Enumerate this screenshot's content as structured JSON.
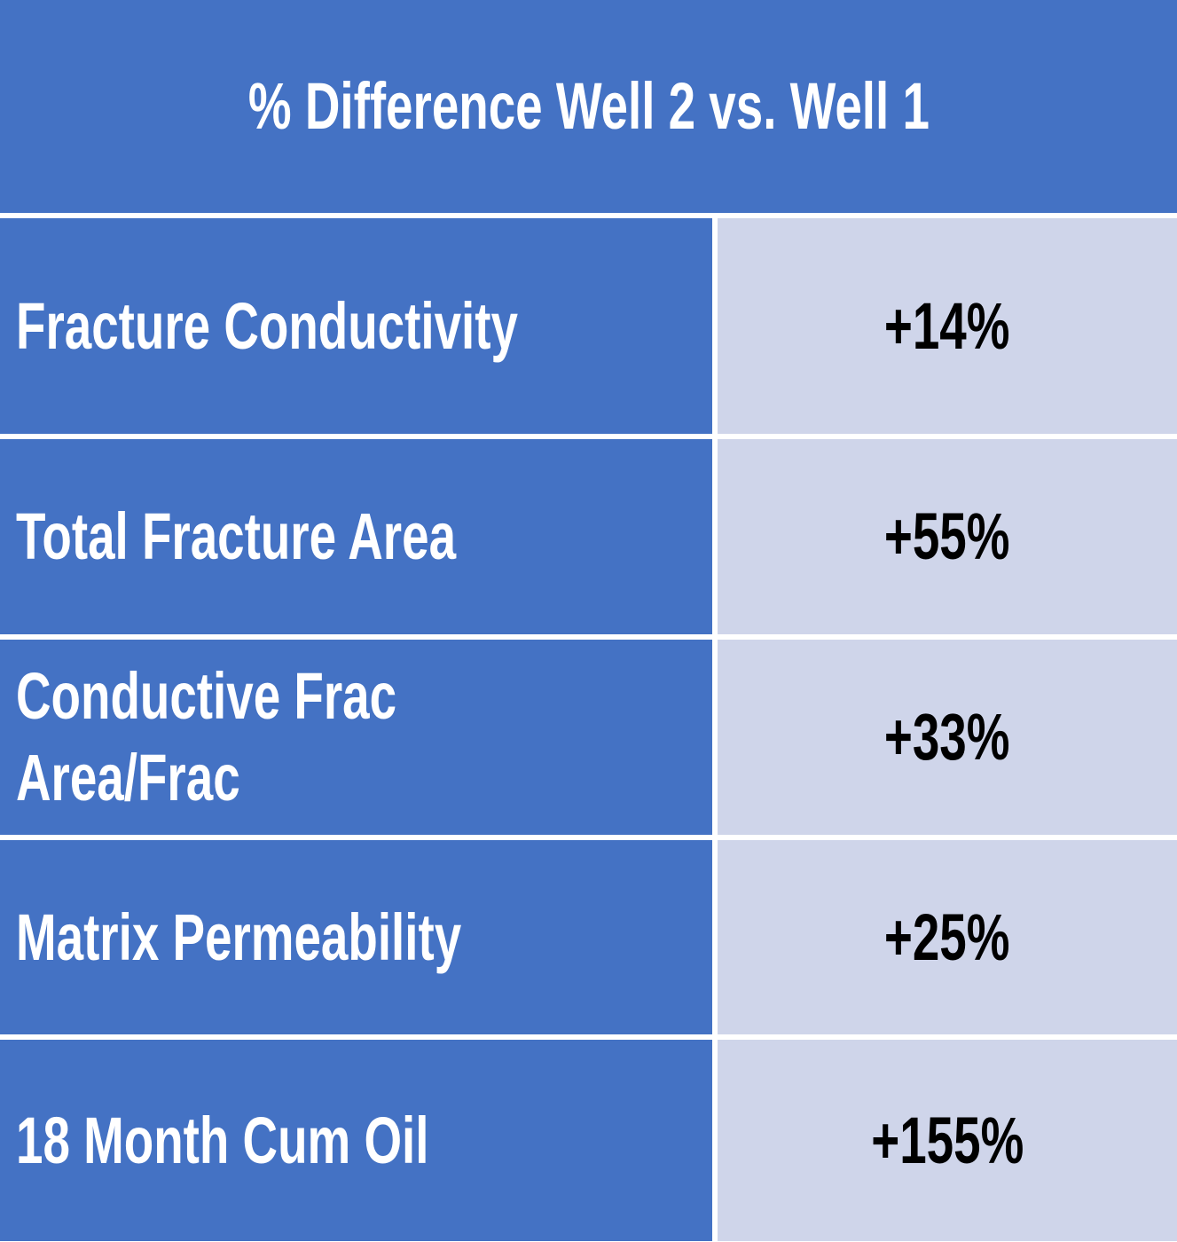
{
  "header": {
    "title": "% Difference Well 2 vs. Well 1"
  },
  "table": {
    "rows": [
      [
        "Fracture Conductivity",
        "+14%"
      ],
      [
        "Total Fracture Area",
        "+55%"
      ],
      [
        "Conductive Frac Area/Frac",
        "+33%"
      ],
      [
        "Matrix Permeability",
        "+25%"
      ],
      [
        "18 Month Cum Oil",
        "+155%"
      ]
    ]
  }
}
